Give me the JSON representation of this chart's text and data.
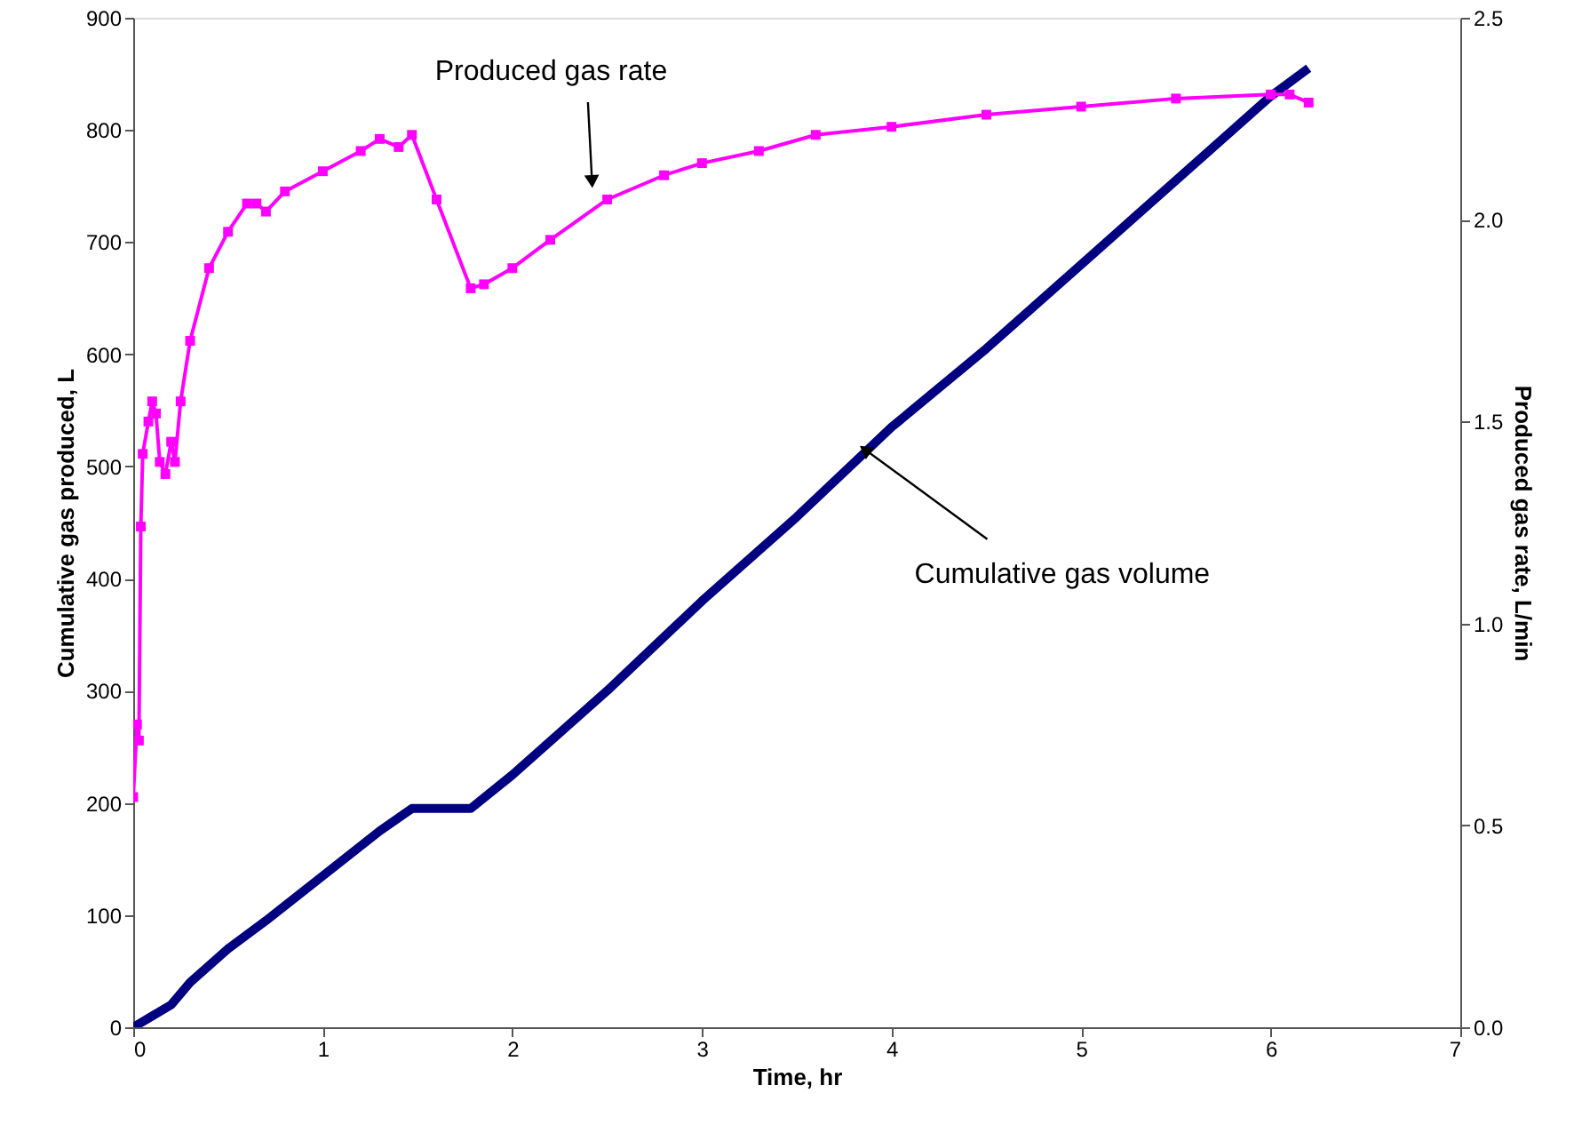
{
  "chart_data": {
    "type": "line",
    "xlabel": "Time, hr",
    "ylabel": "Cumulative gas produced, L",
    "y2label": "Produced gas rate, L/min",
    "xlim": [
      0,
      7
    ],
    "xticks": [
      0,
      1,
      2,
      3,
      4,
      5,
      6,
      7
    ],
    "ylim": [
      0,
      900
    ],
    "yticks": [
      0,
      100,
      200,
      300,
      400,
      500,
      600,
      700,
      800,
      900
    ],
    "y2lim": [
      0,
      2.5
    ],
    "y2ticks": [
      {
        "value": 0,
        "label": "0.0"
      },
      {
        "value": 0.5,
        "label": "0.5"
      },
      {
        "value": 1,
        "label": "1.0"
      },
      {
        "value": 1.5,
        "label": "1.5"
      },
      {
        "value": 2,
        "label": "2.0"
      },
      {
        "value": 2.5,
        "label": "2.5"
      }
    ],
    "grid": false,
    "series": [
      {
        "color": "#000080",
        "marker": "none",
        "x": [
          0,
          0.1,
          0.2,
          0.3,
          0.5,
          0.7,
          1.0,
          1.3,
          1.47,
          1.78,
          2.0,
          2.5,
          3.0,
          3.5,
          4.0,
          4.5,
          5.0,
          5.5,
          6.0,
          6.2
        ],
        "values": [
          0,
          10,
          20,
          40,
          70,
          95,
          135,
          175,
          195,
          195,
          225,
          300,
          380,
          455,
          535,
          605,
          680,
          755,
          830,
          855
        ]
      },
      {
        "color": "#ff00ff",
        "marker": "square",
        "axis": "y2",
        "x": [
          0.0,
          0.02,
          0.03,
          0.04,
          0.05,
          0.08,
          0.1,
          0.12,
          0.14,
          0.17,
          0.2,
          0.22,
          0.25,
          0.3,
          0.4,
          0.5,
          0.6,
          0.65,
          0.7,
          0.8,
          1.0,
          1.2,
          1.3,
          1.4,
          1.47,
          1.6,
          1.78,
          1.85,
          2.0,
          2.2,
          2.5,
          2.8,
          3.0,
          3.3,
          3.6,
          4.0,
          4.5,
          5.0,
          5.5,
          6.0,
          6.1,
          6.2
        ],
        "values": [
          0.57,
          0.75,
          0.71,
          1.24,
          1.42,
          1.5,
          1.55,
          1.52,
          1.4,
          1.37,
          1.45,
          1.4,
          1.55,
          1.7,
          1.88,
          1.97,
          2.04,
          2.04,
          2.02,
          2.07,
          2.12,
          2.17,
          2.2,
          2.18,
          2.21,
          2.05,
          1.83,
          1.84,
          1.88,
          1.95,
          2.05,
          2.11,
          2.14,
          2.17,
          2.21,
          2.23,
          2.26,
          2.28,
          2.3,
          2.31,
          2.31,
          2.29
        ]
      }
    ],
    "annotations": [
      {
        "text": "Produced gas rate",
        "x": 2.42,
        "y": 754
      },
      {
        "text": "Cumulative gas volume",
        "x": 3.86,
        "y": 515
      }
    ]
  }
}
